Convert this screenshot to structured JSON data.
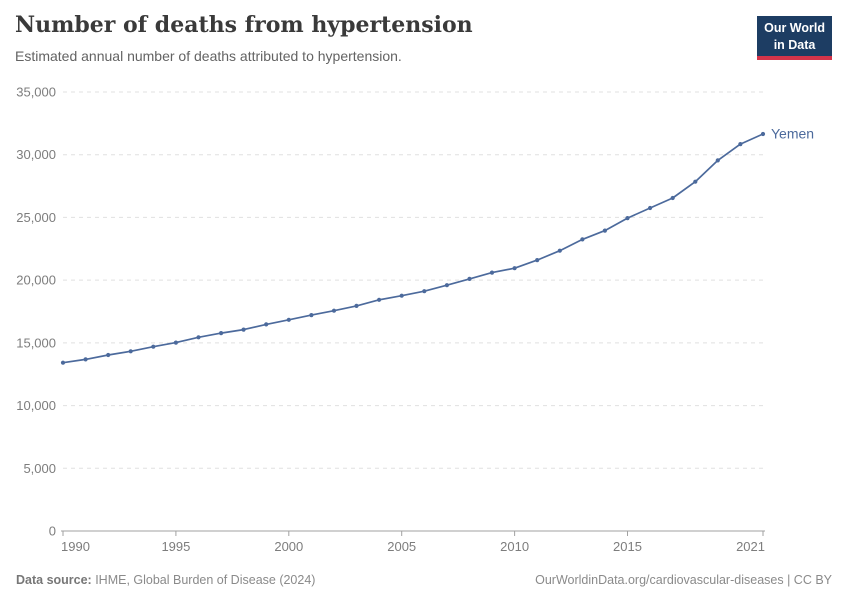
{
  "header": {
    "title": "Number of deaths from hypertension",
    "subtitle": "Estimated annual number of deaths attributed to hypertension."
  },
  "logo": {
    "line1": "Our World",
    "line2": "in Data",
    "bg_color": "#1d3d63",
    "accent_color": "#d4344a"
  },
  "chart_data": {
    "type": "line",
    "title": "Number of deaths from hypertension",
    "xlabel": "",
    "ylabel": "",
    "xlim": [
      1990,
      2021
    ],
    "ylim": [
      0,
      35000
    ],
    "xticks": [
      1990,
      1995,
      2000,
      2005,
      2010,
      2015,
      2021
    ],
    "yticks": [
      0,
      5000,
      10000,
      15000,
      20000,
      25000,
      30000,
      35000
    ],
    "grid": "horizontal-dashed",
    "legend_position": "end-of-line",
    "x": [
      1990,
      1991,
      1992,
      1993,
      1994,
      1995,
      1996,
      1997,
      1998,
      1999,
      2000,
      2001,
      2002,
      2003,
      2004,
      2005,
      2006,
      2007,
      2008,
      2009,
      2010,
      2011,
      2012,
      2013,
      2014,
      2015,
      2016,
      2017,
      2018,
      2019,
      2020,
      2021
    ],
    "series": [
      {
        "name": "Yemen",
        "color": "#4c6a9c",
        "values": [
          13420,
          13680,
          14030,
          14330,
          14690,
          15020,
          15440,
          15780,
          16060,
          16470,
          16840,
          17210,
          17560,
          17950,
          18430,
          18760,
          19120,
          19600,
          20100,
          20600,
          20950,
          21600,
          22350,
          23250,
          23950,
          24950,
          25750,
          26550,
          27850,
          29550,
          30850,
          31650
        ]
      }
    ]
  },
  "colors": {
    "gridline": "#e0e0e0",
    "axis": "#a1a1a1",
    "tick_text": "#7d7d7d"
  },
  "footer": {
    "source_label": "Data source:",
    "source_text": " IHME, Global Burden of Disease (2024)",
    "right_text": "OurWorldinData.org/cardiovascular-diseases | CC BY"
  }
}
